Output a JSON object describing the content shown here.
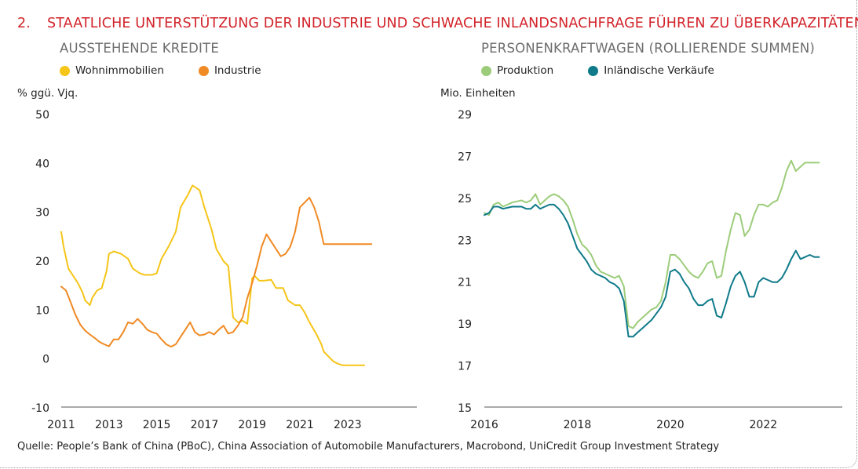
{
  "header": {
    "number": "2.",
    "title": "STAATLICHE UNTERSTÜTZUNG DER INDUSTRIE UND SCHWACHE INLANDSNACHFRAGE FÜHREN ZU ÜBERKAPAZITÄTEN"
  },
  "colors": {
    "title": "#d2232a",
    "wohn": "#f5c518",
    "industrie": "#f08a24",
    "produktion": "#9ccc7a",
    "verkaeufe": "#0f7a8a"
  },
  "source": "Quelle: People’s Bank of China (PBoC), China Association of Automobile Manufacturers, Macrobond, UniCredit Group Investment Strategy",
  "chart_data": [
    {
      "type": "line",
      "title": "AUSSTEHENDE KREDITE",
      "ylabel": "% ggü. Vjq.",
      "ylim": [
        -10,
        50
      ],
      "yticks": [
        50,
        40,
        30,
        20,
        10,
        0,
        -10
      ],
      "xlim": [
        2011,
        2025.9
      ],
      "xticks": [
        2011,
        2013,
        2015,
        2017,
        2019,
        2021,
        2023
      ],
      "xtick_labels": [
        "2011",
        "2013",
        "2015",
        "2017",
        "2019",
        "2021",
        "2023"
      ],
      "series": [
        {
          "name": "Wohnimmobilien",
          "color": "#f5c518",
          "x": [
            2011.0,
            2011.1,
            2011.3,
            2011.5,
            2011.7,
            2011.9,
            2012.0,
            2012.2,
            2012.3,
            2012.5,
            2012.7,
            2012.9,
            2013.0,
            2013.2,
            2013.5,
            2013.8,
            2014.0,
            2014.3,
            2014.5,
            2014.8,
            2015.0,
            2015.2,
            2015.5,
            2015.8,
            2016.0,
            2016.3,
            2016.5,
            2016.8,
            2017.0,
            2017.3,
            2017.5,
            2017.8,
            2018.0,
            2018.2,
            2018.4,
            2018.6,
            2018.8,
            2019.0,
            2019.1,
            2019.3,
            2019.5,
            2019.8,
            2020.0,
            2020.3,
            2020.5,
            2020.8,
            2021.0,
            2021.2,
            2021.4,
            2021.7,
            2021.9,
            2022.0,
            2022.2,
            2022.4,
            2022.6,
            2022.8,
            2023.0,
            2023.2,
            2023.4,
            2023.6,
            2023.7
          ],
          "y": [
            26,
            23,
            18.5,
            17,
            15.5,
            13.5,
            12,
            11,
            12.5,
            14,
            14.5,
            18,
            21.5,
            22,
            21.5,
            20.5,
            18.5,
            17.5,
            17.2,
            17.2,
            17.5,
            20.5,
            23,
            26,
            31,
            33.5,
            35.5,
            34.5,
            31,
            26.5,
            22.5,
            20,
            19,
            8.5,
            7.5,
            7.8,
            7.2,
            16.5,
            17,
            16,
            16,
            16.2,
            14.5,
            14.5,
            12,
            11,
            11,
            9.5,
            7.5,
            5,
            3,
            1.5,
            0.5,
            -0.5,
            -1,
            -1.3,
            -1.3,
            -1.3,
            -1.3,
            -1.3,
            -1.3
          ]
        },
        {
          "name": "Industrie",
          "color": "#f08a24",
          "x": [
            2011.0,
            2011.2,
            2011.4,
            2011.6,
            2011.8,
            2012.0,
            2012.2,
            2012.4,
            2012.6,
            2012.8,
            2013.0,
            2013.2,
            2013.4,
            2013.6,
            2013.8,
            2014.0,
            2014.2,
            2014.4,
            2014.6,
            2014.8,
            2015.0,
            2015.2,
            2015.4,
            2015.6,
            2015.8,
            2016.0,
            2016.2,
            2016.4,
            2016.6,
            2016.8,
            2017.0,
            2017.2,
            2017.4,
            2017.6,
            2017.8,
            2018.0,
            2018.2,
            2018.4,
            2018.6,
            2018.8,
            2019.0,
            2019.2,
            2019.4,
            2019.6,
            2019.8,
            2020.0,
            2020.2,
            2020.4,
            2020.6,
            2020.8,
            2021.0,
            2021.2,
            2021.4,
            2021.6,
            2021.8,
            2022.0,
            2022.2,
            2022.4,
            2022.6,
            2022.8,
            2023.0,
            2023.2,
            2023.4,
            2023.6,
            2023.8,
            2024.0
          ],
          "y": [
            14.8,
            14,
            11.5,
            9,
            7,
            5.8,
            5,
            4.3,
            3.5,
            3,
            2.6,
            4,
            4,
            5.5,
            7.5,
            7.2,
            8.2,
            7.2,
            6,
            5.5,
            5.2,
            4,
            3,
            2.5,
            3,
            4.5,
            6,
            7.5,
            5.5,
            4.8,
            5,
            5.5,
            5,
            6,
            6.8,
            5.2,
            5.5,
            6.8,
            8.5,
            12.5,
            15.5,
            19,
            23,
            25.5,
            24,
            22.5,
            21,
            21.5,
            23,
            26,
            31,
            32,
            33,
            31,
            28,
            23.5,
            23.5,
            23.5,
            23.5,
            23.5,
            23.5,
            23.5,
            23.5,
            23.5,
            23.5,
            23.5
          ]
        }
      ]
    },
    {
      "type": "line",
      "title": "PERSONENKRAFTWAGEN (ROLLIERENDE SUMMEN)",
      "ylabel": "Mio. Einheiten",
      "ylim": [
        15,
        29
      ],
      "yticks": [
        29,
        27,
        25,
        23,
        21,
        19,
        17,
        15
      ],
      "xlim": [
        2016,
        2023.7
      ],
      "xticks": [
        2016,
        2018,
        2020,
        2022
      ],
      "xtick_labels": [
        "2016",
        "2018",
        "2020",
        "2022"
      ],
      "series": [
        {
          "name": "Produktion",
          "color": "#9ccc7a",
          "x": [
            2016.0,
            2016.1,
            2016.2,
            2016.3,
            2016.4,
            2016.6,
            2016.8,
            2016.9,
            2017.0,
            2017.1,
            2017.2,
            2017.3,
            2017.4,
            2017.5,
            2017.6,
            2017.7,
            2017.8,
            2017.9,
            2018.0,
            2018.1,
            2018.2,
            2018.3,
            2018.4,
            2018.5,
            2018.6,
            2018.7,
            2018.8,
            2018.9,
            2019.0,
            2019.1,
            2019.2,
            2019.3,
            2019.4,
            2019.5,
            2019.6,
            2019.7,
            2019.8,
            2019.9,
            2020.0,
            2020.1,
            2020.2,
            2020.3,
            2020.4,
            2020.5,
            2020.6,
            2020.7,
            2020.8,
            2020.9,
            2021.0,
            2021.1,
            2021.2,
            2021.3,
            2021.4,
            2021.5,
            2021.6,
            2021.7,
            2021.8,
            2021.9,
            2022.0,
            2022.1,
            2022.2,
            2022.3,
            2022.4,
            2022.5,
            2022.6,
            2022.7,
            2022.8,
            2022.9,
            2023.0,
            2023.1,
            2023.2
          ],
          "y": [
            24.3,
            24.2,
            24.7,
            24.8,
            24.6,
            24.8,
            24.9,
            24.8,
            24.9,
            25.2,
            24.7,
            24.9,
            25.1,
            25.2,
            25.1,
            24.9,
            24.6,
            24.0,
            23.3,
            22.8,
            22.6,
            22.3,
            21.8,
            21.5,
            21.4,
            21.3,
            21.2,
            21.3,
            20.8,
            18.9,
            18.8,
            19.1,
            19.3,
            19.5,
            19.7,
            19.8,
            20.1,
            21.0,
            22.3,
            22.3,
            22.1,
            21.8,
            21.5,
            21.3,
            21.2,
            21.5,
            21.9,
            22.0,
            21.2,
            21.3,
            22.5,
            23.5,
            24.3,
            24.2,
            23.2,
            23.5,
            24.2,
            24.7,
            24.7,
            24.6,
            24.8,
            24.9,
            25.5,
            26.3,
            26.8,
            26.3,
            26.5,
            26.7,
            26.7,
            26.7,
            26.7
          ]
        },
        {
          "name": "Inländische Verkäufe",
          "color": "#0f7a8a",
          "x": [
            2016.0,
            2016.1,
            2016.2,
            2016.3,
            2016.4,
            2016.6,
            2016.8,
            2016.9,
            2017.0,
            2017.1,
            2017.2,
            2017.3,
            2017.4,
            2017.5,
            2017.6,
            2017.7,
            2017.8,
            2017.9,
            2018.0,
            2018.1,
            2018.2,
            2018.3,
            2018.4,
            2018.5,
            2018.6,
            2018.7,
            2018.8,
            2018.9,
            2019.0,
            2019.1,
            2019.2,
            2019.3,
            2019.4,
            2019.5,
            2019.6,
            2019.7,
            2019.8,
            2019.9,
            2020.0,
            2020.1,
            2020.2,
            2020.3,
            2020.4,
            2020.5,
            2020.6,
            2020.7,
            2020.8,
            2020.9,
            2021.0,
            2021.1,
            2021.2,
            2021.3,
            2021.4,
            2021.5,
            2021.6,
            2021.7,
            2021.8,
            2021.9,
            2022.0,
            2022.1,
            2022.2,
            2022.3,
            2022.4,
            2022.5,
            2022.6,
            2022.7,
            2022.8,
            2022.9,
            2023.0,
            2023.1,
            2023.2
          ],
          "y": [
            24.2,
            24.3,
            24.6,
            24.6,
            24.5,
            24.6,
            24.6,
            24.5,
            24.5,
            24.7,
            24.5,
            24.6,
            24.7,
            24.7,
            24.5,
            24.2,
            23.8,
            23.2,
            22.6,
            22.3,
            22.0,
            21.6,
            21.4,
            21.3,
            21.2,
            21.0,
            20.9,
            20.7,
            20.1,
            18.4,
            18.4,
            18.6,
            18.8,
            19.0,
            19.2,
            19.5,
            19.8,
            20.3,
            21.5,
            21.6,
            21.4,
            21.0,
            20.7,
            20.2,
            19.9,
            19.9,
            20.1,
            20.2,
            19.4,
            19.3,
            20.0,
            20.8,
            21.3,
            21.5,
            21.0,
            20.3,
            20.3,
            21.0,
            21.2,
            21.1,
            21.0,
            21.0,
            21.2,
            21.6,
            22.1,
            22.5,
            22.1,
            22.2,
            22.3,
            22.2,
            22.2
          ]
        }
      ]
    }
  ]
}
